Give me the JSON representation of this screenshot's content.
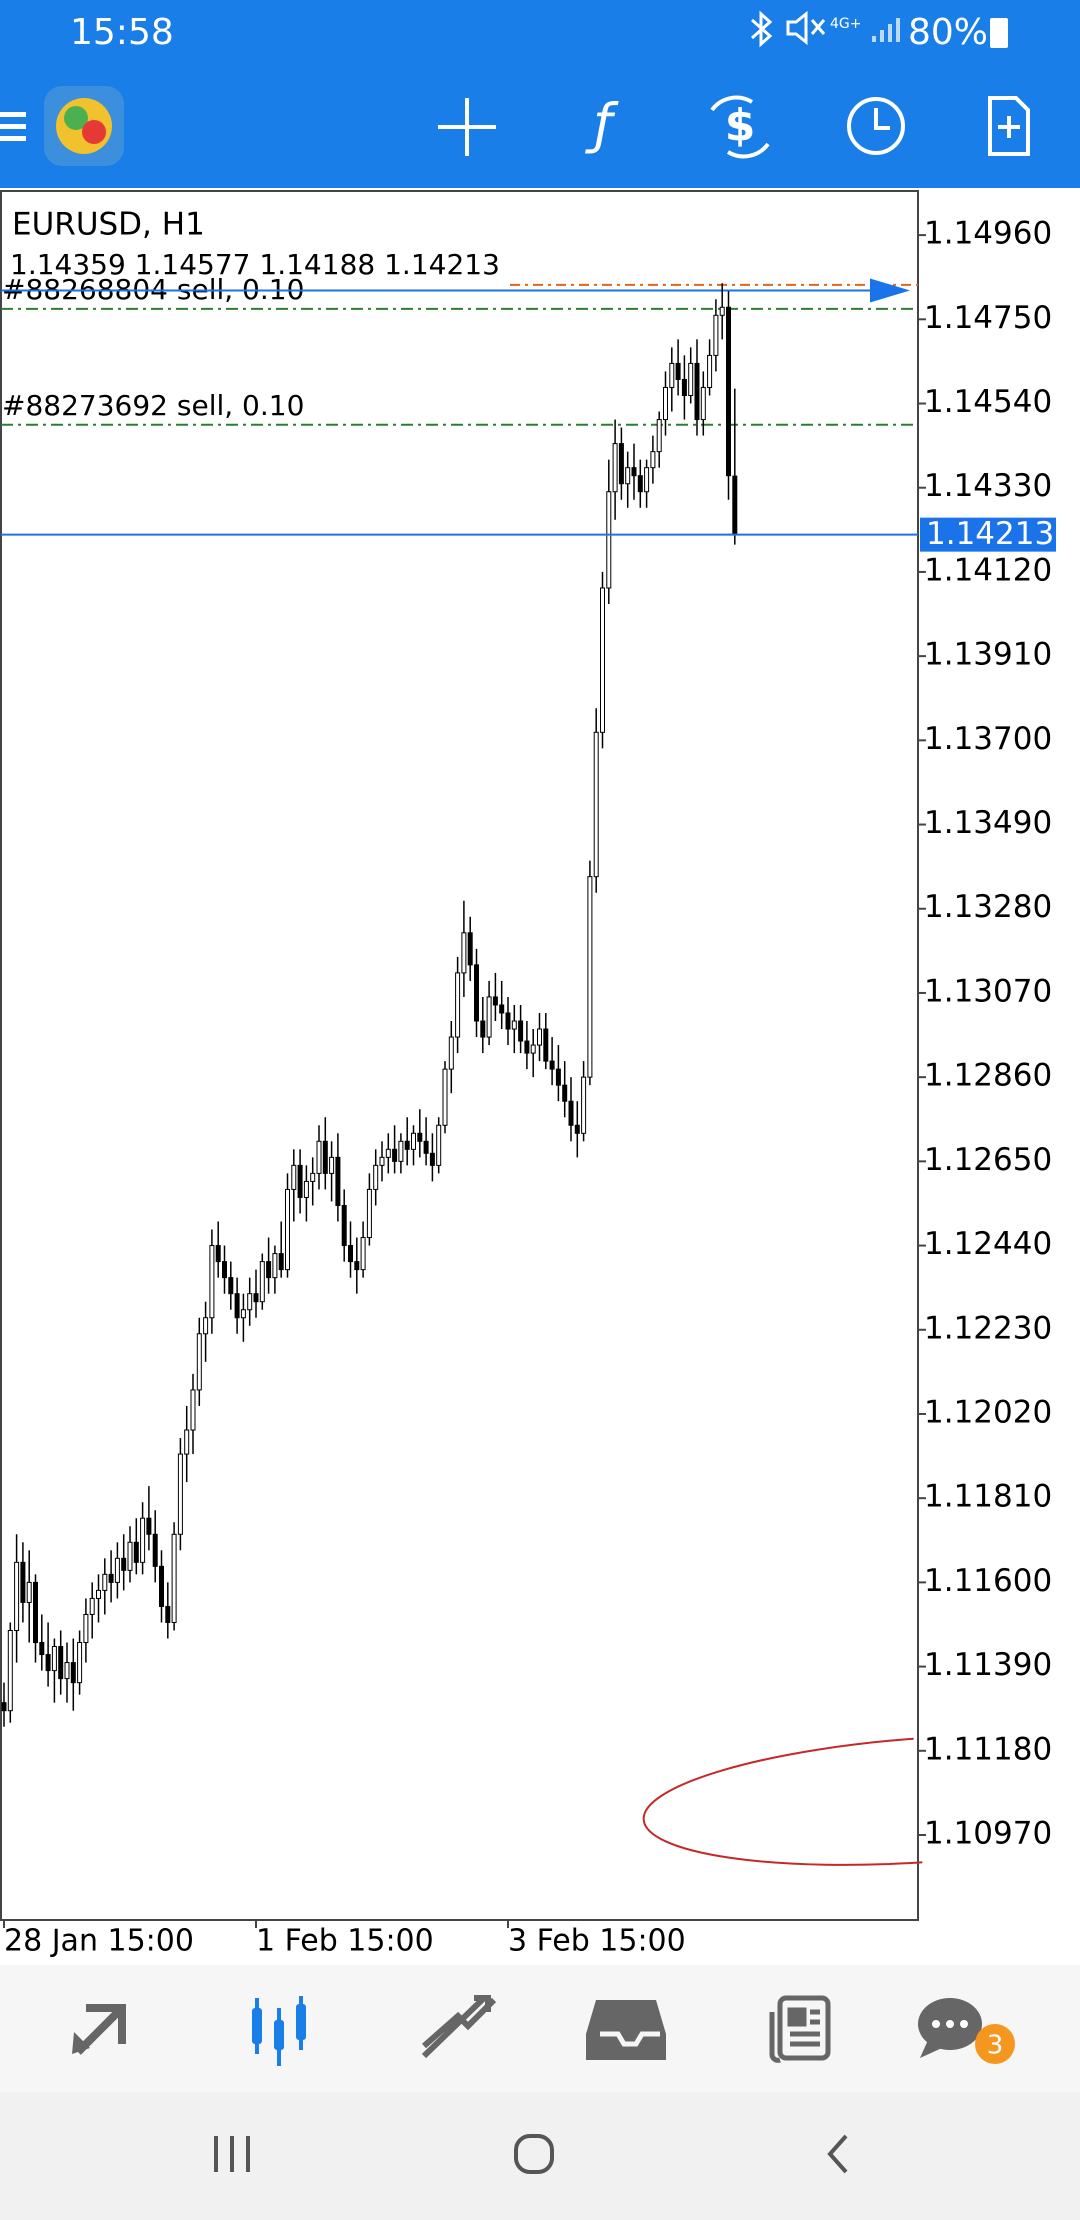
{
  "status_bar": {
    "time": "15:58",
    "battery": "80%"
  },
  "chart_data": {
    "type": "candlestick",
    "symbol": "EURUSD, H1",
    "ylim": [
      1.10758,
      1.1507
    ],
    "yticks": [
      {
        "value": 1.1496,
        "label": "1.14960"
      },
      {
        "value": 1.1475,
        "label": "1.14750"
      },
      {
        "value": 1.1454,
        "label": "1.14540"
      },
      {
        "value": 1.1433,
        "label": "1.14330"
      },
      {
        "value": 1.1412,
        "label": "1.14120"
      },
      {
        "value": 1.1391,
        "label": "1.13910"
      },
      {
        "value": 1.137,
        "label": "1.13700"
      },
      {
        "value": 1.1349,
        "label": "1.13490"
      },
      {
        "value": 1.1328,
        "label": "1.13280"
      },
      {
        "value": 1.1307,
        "label": "1.13070"
      },
      {
        "value": 1.1286,
        "label": "1.12860"
      },
      {
        "value": 1.1265,
        "label": "1.12650"
      },
      {
        "value": 1.1244,
        "label": "1.12440"
      },
      {
        "value": 1.1223,
        "label": "1.12230"
      },
      {
        "value": 1.1202,
        "label": "1.12020"
      },
      {
        "value": 1.1181,
        "label": "1.11810"
      },
      {
        "value": 1.116,
        "label": "1.11600"
      },
      {
        "value": 1.1139,
        "label": "1.11390"
      },
      {
        "value": 1.1118,
        "label": "1.11180"
      },
      {
        "value": 1.1097,
        "label": "1.10970"
      }
    ],
    "xticks": [
      {
        "value": 0,
        "label": "28 Jan 15:00"
      },
      {
        "value": 40,
        "label": "1 Feb 15:00"
      },
      {
        "value": 80,
        "label": "3 Feb 15:00"
      }
    ],
    "orders": [
      {
        "label": "#88268804 sell, 0.10",
        "price": 1.14776,
        "color": "#2e7d32"
      },
      {
        "label": "#88273692 sell, 0.10",
        "price": 1.14487,
        "color": "#2e7d32"
      }
    ],
    "ask_line": {
      "price": 1.14836,
      "color": "#e0661b"
    },
    "trade_arrow": {
      "price": 1.14822,
      "color": "#1a73e8"
    },
    "price_line_color": "#1a73e8",
    "ohlc": [
      [
        1.113,
        1.1135,
        1.1124,
        1.1128
      ],
      [
        1.1128,
        1.115,
        1.1125,
        1.1148
      ],
      [
        1.1148,
        1.1172,
        1.114,
        1.1165
      ],
      [
        1.1165,
        1.117,
        1.115,
        1.1155
      ],
      [
        1.1155,
        1.1168,
        1.1145,
        1.116
      ],
      [
        1.116,
        1.1162,
        1.114,
        1.1145
      ],
      [
        1.1145,
        1.1152,
        1.1138,
        1.1142
      ],
      [
        1.1142,
        1.115,
        1.1134,
        1.1138
      ],
      [
        1.1138,
        1.1146,
        1.113,
        1.1144
      ],
      [
        1.1144,
        1.1148,
        1.1132,
        1.1136
      ],
      [
        1.1136,
        1.1145,
        1.113,
        1.114
      ],
      [
        1.114,
        1.1146,
        1.1128,
        1.1135
      ],
      [
        1.1135,
        1.1148,
        1.1132,
        1.1145
      ],
      [
        1.1145,
        1.1156,
        1.114,
        1.1152
      ],
      [
        1.1152,
        1.116,
        1.1146,
        1.1156
      ],
      [
        1.1156,
        1.1162,
        1.115,
        1.1158
      ],
      [
        1.1158,
        1.1166,
        1.1152,
        1.1162
      ],
      [
        1.1162,
        1.1168,
        1.1155,
        1.116
      ],
      [
        1.116,
        1.117,
        1.1156,
        1.1166
      ],
      [
        1.1166,
        1.1172,
        1.1158,
        1.1163
      ],
      [
        1.1163,
        1.1174,
        1.116,
        1.117
      ],
      [
        1.117,
        1.1176,
        1.1162,
        1.1165
      ],
      [
        1.1165,
        1.118,
        1.1162,
        1.1176
      ],
      [
        1.1176,
        1.1184,
        1.1168,
        1.1172
      ],
      [
        1.1172,
        1.1178,
        1.116,
        1.1164
      ],
      [
        1.1164,
        1.1168,
        1.115,
        1.1154
      ],
      [
        1.1154,
        1.116,
        1.1146,
        1.115
      ],
      [
        1.115,
        1.1175,
        1.1148,
        1.1172
      ],
      [
        1.1172,
        1.1196,
        1.1168,
        1.1192
      ],
      [
        1.1192,
        1.1204,
        1.1185,
        1.1198
      ],
      [
        1.1198,
        1.1212,
        1.1192,
        1.1208
      ],
      [
        1.1208,
        1.1226,
        1.1204,
        1.1222
      ],
      [
        1.1222,
        1.123,
        1.1215,
        1.1226
      ],
      [
        1.1226,
        1.1248,
        1.1222,
        1.1244
      ],
      [
        1.1244,
        1.125,
        1.1236,
        1.124
      ],
      [
        1.124,
        1.1244,
        1.1232,
        1.1236
      ],
      [
        1.1236,
        1.124,
        1.1228,
        1.1232
      ],
      [
        1.1232,
        1.1236,
        1.1222,
        1.1226
      ],
      [
        1.1226,
        1.1232,
        1.122,
        1.1228
      ],
      [
        1.1228,
        1.1236,
        1.1224,
        1.1232
      ],
      [
        1.1232,
        1.1238,
        1.1226,
        1.123
      ],
      [
        1.123,
        1.1242,
        1.1228,
        1.124
      ],
      [
        1.124,
        1.1246,
        1.1232,
        1.1236
      ],
      [
        1.1236,
        1.1244,
        1.1232,
        1.1242
      ],
      [
        1.1242,
        1.125,
        1.1236,
        1.1238
      ],
      [
        1.1238,
        1.1262,
        1.1236,
        1.1258
      ],
      [
        1.1258,
        1.1268,
        1.125,
        1.1264
      ],
      [
        1.1264,
        1.1268,
        1.1252,
        1.1256
      ],
      [
        1.1256,
        1.1264,
        1.125,
        1.126
      ],
      [
        1.126,
        1.1266,
        1.1254,
        1.1262
      ],
      [
        1.1262,
        1.1274,
        1.1258,
        1.127
      ],
      [
        1.127,
        1.1276,
        1.1258,
        1.1262
      ],
      [
        1.1262,
        1.127,
        1.1255,
        1.1266
      ],
      [
        1.1266,
        1.1272,
        1.125,
        1.1254
      ],
      [
        1.1254,
        1.1258,
        1.124,
        1.1244
      ],
      [
        1.1244,
        1.125,
        1.1236,
        1.124
      ],
      [
        1.124,
        1.1246,
        1.1232,
        1.1238
      ],
      [
        1.1238,
        1.125,
        1.1236,
        1.1246
      ],
      [
        1.1246,
        1.1262,
        1.1244,
        1.1258
      ],
      [
        1.1258,
        1.1268,
        1.1254,
        1.1264
      ],
      [
        1.1264,
        1.127,
        1.126,
        1.1266
      ],
      [
        1.1266,
        1.1272,
        1.1262,
        1.1268
      ],
      [
        1.1268,
        1.1274,
        1.1262,
        1.1265
      ],
      [
        1.1265,
        1.1272,
        1.1262,
        1.127
      ],
      [
        1.127,
        1.1276,
        1.1264,
        1.1268
      ],
      [
        1.1268,
        1.1274,
        1.1264,
        1.1272
      ],
      [
        1.1272,
        1.1278,
        1.1266,
        1.127
      ],
      [
        1.127,
        1.1276,
        1.1264,
        1.1267
      ],
      [
        1.1267,
        1.1272,
        1.126,
        1.1264
      ],
      [
        1.1264,
        1.1276,
        1.1262,
        1.1274
      ],
      [
        1.1274,
        1.129,
        1.1272,
        1.1288
      ],
      [
        1.1288,
        1.13,
        1.1282,
        1.1296
      ],
      [
        1.1296,
        1.1316,
        1.1292,
        1.1312
      ],
      [
        1.1312,
        1.133,
        1.1306,
        1.1322
      ],
      [
        1.1322,
        1.1326,
        1.131,
        1.1314
      ],
      [
        1.1314,
        1.1318,
        1.1296,
        1.13
      ],
      [
        1.13,
        1.1306,
        1.1292,
        1.1296
      ],
      [
        1.1296,
        1.131,
        1.1294,
        1.1306
      ],
      [
        1.1306,
        1.1312,
        1.13,
        1.1304
      ],
      [
        1.1304,
        1.131,
        1.1298,
        1.1302
      ],
      [
        1.1302,
        1.1306,
        1.1294,
        1.1298
      ],
      [
        1.1298,
        1.1304,
        1.1292,
        1.13
      ],
      [
        1.13,
        1.1304,
        1.1292,
        1.1295
      ],
      [
        1.1295,
        1.13,
        1.1288,
        1.1292
      ],
      [
        1.1292,
        1.1298,
        1.1286,
        1.1294
      ],
      [
        1.1294,
        1.1302,
        1.129,
        1.1298
      ],
      [
        1.1298,
        1.1302,
        1.1288,
        1.129
      ],
      [
        1.129,
        1.1296,
        1.1284,
        1.1288
      ],
      [
        1.1288,
        1.1294,
        1.128,
        1.1284
      ],
      [
        1.1284,
        1.129,
        1.1276,
        1.128
      ],
      [
        1.128,
        1.1286,
        1.127,
        1.1274
      ],
      [
        1.1274,
        1.128,
        1.1266,
        1.1272
      ],
      [
        1.1272,
        1.129,
        1.127,
        1.1286
      ],
      [
        1.1286,
        1.134,
        1.1284,
        1.1336
      ],
      [
        1.1336,
        1.1378,
        1.1332,
        1.1372
      ],
      [
        1.1372,
        1.1412,
        1.1368,
        1.1408
      ],
      [
        1.1408,
        1.144,
        1.1404,
        1.1432
      ],
      [
        1.1432,
        1.145,
        1.1425,
        1.1444
      ],
      [
        1.1444,
        1.1448,
        1.143,
        1.1434
      ],
      [
        1.1434,
        1.1442,
        1.1428,
        1.1438
      ],
      [
        1.1438,
        1.1444,
        1.143,
        1.1436
      ],
      [
        1.1436,
        1.144,
        1.1428,
        1.1432
      ],
      [
        1.1432,
        1.144,
        1.1428,
        1.1438
      ],
      [
        1.1438,
        1.1446,
        1.1434,
        1.1442
      ],
      [
        1.1442,
        1.1452,
        1.1438,
        1.145
      ],
      [
        1.145,
        1.1462,
        1.1446,
        1.1458
      ],
      [
        1.1458,
        1.1468,
        1.1452,
        1.1464
      ],
      [
        1.1464,
        1.147,
        1.1456,
        1.146
      ],
      [
        1.146,
        1.1466,
        1.145,
        1.1456
      ],
      [
        1.1456,
        1.1468,
        1.1454,
        1.1464
      ],
      [
        1.1464,
        1.147,
        1.1446,
        1.145
      ],
      [
        1.145,
        1.1462,
        1.1446,
        1.1458
      ],
      [
        1.1458,
        1.147,
        1.1456,
        1.1466
      ],
      [
        1.1466,
        1.148,
        1.1462,
        1.1476
      ],
      [
        1.1476,
        1.1484,
        1.147,
        1.1478
      ],
      [
        1.1478,
        1.1482,
        1.143,
        1.1436
      ],
      [
        1.14359,
        1.14577,
        1.14188,
        1.14213
      ]
    ]
  },
  "bottom_nav": {
    "badge": "3"
  }
}
